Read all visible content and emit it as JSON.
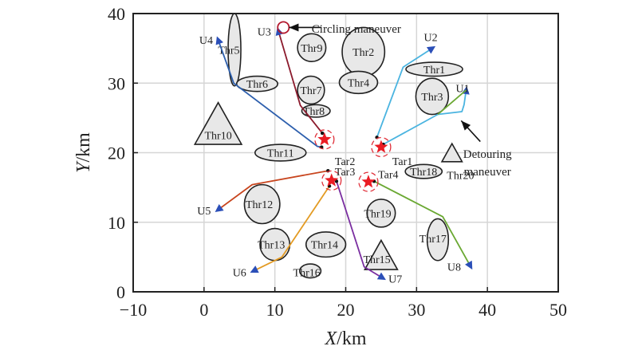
{
  "chart_data": {
    "type": "scatter",
    "title": "",
    "xlabel_italic": "X",
    "xlabel_unit": "/km",
    "ylabel_italic": "Y",
    "ylabel_unit": "/km",
    "xlim": [
      -10,
      50
    ],
    "ylim": [
      0,
      40
    ],
    "xticks": [
      -10,
      0,
      10,
      20,
      30,
      40,
      50
    ],
    "yticks": [
      0,
      10,
      20,
      30,
      40
    ],
    "xtick_labels": [
      "−10",
      "0",
      "10",
      "20",
      "30",
      "40",
      "50"
    ],
    "ytick_labels": [
      "0",
      "10",
      "20",
      "30",
      "40"
    ],
    "grid": true,
    "threats": [
      {
        "name": "Thr1",
        "shape": "ellipse",
        "x": 32.5,
        "y": 32.0,
        "rx": 4.0,
        "ry": 1.0,
        "label_x": 32.5,
        "label_y": 32.0
      },
      {
        "name": "Thr2",
        "shape": "ellipse",
        "x": 22.5,
        "y": 34.5,
        "rx": 3.0,
        "ry": 3.5,
        "label_x": 22.5,
        "label_y": 34.5
      },
      {
        "name": "Thr3",
        "shape": "ellipse",
        "x": 32.2,
        "y": 28.1,
        "rx": 2.3,
        "ry": 2.6,
        "label_x": 32.2,
        "label_y": 28.1
      },
      {
        "name": "Thr4",
        "shape": "ellipse",
        "x": 21.8,
        "y": 30.1,
        "rx": 2.7,
        "ry": 1.6,
        "label_x": 21.8,
        "label_y": 30.1
      },
      {
        "name": "Thr5",
        "shape": "ellipse",
        "x": 4.3,
        "y": 34.8,
        "rx": 0.9,
        "ry": 5.2,
        "label_x": 3.5,
        "label_y": 34.8
      },
      {
        "name": "Thr6",
        "shape": "ellipse",
        "x": 7.5,
        "y": 29.9,
        "rx": 2.9,
        "ry": 1.1,
        "label_x": 7.5,
        "label_y": 29.9
      },
      {
        "name": "Thr7",
        "shape": "ellipse",
        "x": 15.1,
        "y": 29.0,
        "rx": 1.9,
        "ry": 2.0,
        "label_x": 15.1,
        "label_y": 29.0
      },
      {
        "name": "Thr8",
        "shape": "ellipse",
        "x": 15.8,
        "y": 26.0,
        "rx": 2.0,
        "ry": 0.9,
        "label_x": 15.5,
        "label_y": 26.0
      },
      {
        "name": "Thr9",
        "shape": "ellipse",
        "x": 15.2,
        "y": 35.1,
        "rx": 2.0,
        "ry": 2.0,
        "label_x": 15.2,
        "label_y": 35.1
      },
      {
        "name": "Thr10",
        "shape": "triangle",
        "x": 2.0,
        "y": 24.2,
        "size": 6.0,
        "label_x": 2.0,
        "label_y": 22.5
      },
      {
        "name": "Thr11",
        "shape": "ellipse",
        "x": 10.8,
        "y": 20.0,
        "rx": 3.6,
        "ry": 1.2,
        "label_x": 10.8,
        "label_y": 20.0
      },
      {
        "name": "Thr12",
        "shape": "ellipse",
        "x": 8.2,
        "y": 12.6,
        "rx": 2.5,
        "ry": 2.8,
        "label_x": 7.8,
        "label_y": 12.6
      },
      {
        "name": "Thr13",
        "shape": "ellipse",
        "x": 10.0,
        "y": 6.8,
        "rx": 2.1,
        "ry": 2.3,
        "label_x": 9.5,
        "label_y": 6.8
      },
      {
        "name": "Thr14",
        "shape": "ellipse",
        "x": 17.2,
        "y": 6.8,
        "rx": 2.8,
        "ry": 1.8,
        "label_x": 17.0,
        "label_y": 6.8
      },
      {
        "name": "Thr15",
        "shape": "triangle",
        "x": 25.0,
        "y": 5.3,
        "size": 4.2,
        "label_x": 24.4,
        "label_y": 4.7
      },
      {
        "name": "Thr16",
        "shape": "ellipse",
        "x": 15.0,
        "y": 3.0,
        "rx": 1.5,
        "ry": 1.0,
        "label_x": 14.5,
        "label_y": 2.8
      },
      {
        "name": "Thr17",
        "shape": "ellipse",
        "x": 33.0,
        "y": 7.5,
        "rx": 1.5,
        "ry": 3.0,
        "label_x": 32.3,
        "label_y": 7.7
      },
      {
        "name": "Thr18",
        "shape": "ellipse",
        "x": 31.0,
        "y": 17.3,
        "rx": 2.6,
        "ry": 1.0,
        "label_x": 31.0,
        "label_y": 17.3
      },
      {
        "name": "Thr19",
        "shape": "ellipse",
        "x": 25.0,
        "y": 11.3,
        "rx": 2.0,
        "ry": 2.0,
        "label_x": 24.5,
        "label_y": 11.3
      },
      {
        "name": "Thr20",
        "shape": "triangle",
        "x": 35.0,
        "y": 20.0,
        "size": 2.6,
        "label_x": 36.2,
        "label_y": 16.8
      }
    ],
    "targets": [
      {
        "name": "Tar1",
        "x": 25.0,
        "y": 20.8,
        "label_x": 28.0,
        "label_y": 18.8
      },
      {
        "name": "Tar2",
        "x": 17.0,
        "y": 21.9,
        "label_x": 19.9,
        "label_y": 18.8
      },
      {
        "name": "Tar3",
        "x": 18.0,
        "y": 16.0,
        "label_x": 19.9,
        "label_y": 17.3
      },
      {
        "name": "Tar4",
        "x": 23.2,
        "y": 15.8,
        "label_x": 26.0,
        "label_y": 16.9
      }
    ],
    "uavs": [
      {
        "name": "U1",
        "label_x": 36.5,
        "label_y": 29.3,
        "color": "#4ab4e0",
        "path": [
          [
            25.3,
            21.2
          ],
          [
            33.0,
            25.5
          ],
          [
            36.4,
            25.9
          ],
          [
            36.7,
            26.9
          ],
          [
            37.0,
            29.0
          ]
        ]
      },
      {
        "name": "U1-alt",
        "label_x": null,
        "label_y": null,
        "color": "#6aa832",
        "path": [
          [
            33.0,
            25.5
          ],
          [
            37.0,
            29.0
          ]
        ]
      },
      {
        "name": "U2",
        "label_x": 32.0,
        "label_y": 36.6,
        "color": "#4ab4e0",
        "path": [
          [
            24.4,
            22.2
          ],
          [
            28.1,
            32.3
          ],
          [
            32.2,
            35.0
          ]
        ]
      },
      {
        "name": "U3",
        "label_x": 8.5,
        "label_y": 37.4,
        "color": "#8b1a2c",
        "path": [
          [
            16.7,
            22.8
          ],
          [
            13.6,
            26.8
          ],
          [
            10.5,
            37.5
          ]
        ]
      },
      {
        "name": "U4",
        "label_x": 0.3,
        "label_y": 36.2,
        "color": "#2d5fad",
        "path": [
          [
            16.6,
            20.8
          ],
          [
            16.0,
            20.9
          ],
          [
            4.2,
            30.0
          ],
          [
            2.0,
            36.2
          ]
        ]
      },
      {
        "name": "U5",
        "label_x": 0.0,
        "label_y": 11.7,
        "color": "#c8451e",
        "path": [
          [
            17.5,
            17.4
          ],
          [
            6.8,
            15.4
          ],
          [
            2.0,
            11.8
          ]
        ]
      },
      {
        "name": "U6",
        "label_x": 5.0,
        "label_y": 2.8,
        "color": "#e39b24",
        "path": [
          [
            17.7,
            15.2
          ],
          [
            11.0,
            5.0
          ],
          [
            7.0,
            3.0
          ]
        ]
      },
      {
        "name": "U7",
        "label_x": 27.0,
        "label_y": 1.9,
        "color": "#7a2ea0",
        "path": [
          [
            18.7,
            15.9
          ],
          [
            22.6,
            3.6
          ],
          [
            25.2,
            2.0
          ]
        ]
      },
      {
        "name": "U8",
        "label_x": 35.3,
        "label_y": 3.6,
        "color": "#6aa832",
        "path": [
          [
            24.0,
            15.9
          ],
          [
            33.7,
            10.8
          ],
          [
            37.6,
            3.7
          ]
        ]
      }
    ],
    "annotations": [
      {
        "text": "Circling maneuver",
        "x": 21.5,
        "y": 37.8,
        "arrow_from": [
          16.5,
          38.0
        ],
        "arrow_to": [
          12.0,
          38.0
        ]
      },
      {
        "text": "Detouring",
        "x": 40.0,
        "y": 19.8,
        "arrow_from": [
          39.0,
          21.6
        ],
        "arrow_to": [
          36.3,
          24.6
        ]
      },
      {
        "text": "maneuver",
        "x": 40.0,
        "y": 17.3
      }
    ],
    "circling_marker": {
      "x": 11.2,
      "y": 38.0,
      "r": 0.8,
      "color": "#b3182d"
    }
  }
}
